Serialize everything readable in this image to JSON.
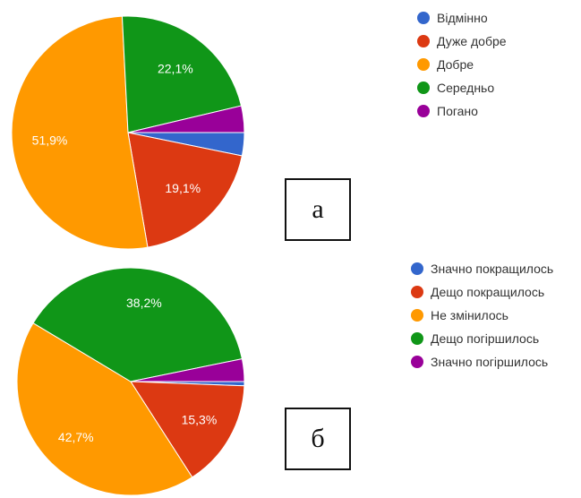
{
  "chart_data": [
    {
      "type": "pie",
      "caption": "а",
      "slices": [
        {
          "label": "Відмінно",
          "value": 3.2,
          "color": "#3366cc",
          "data_label": ""
        },
        {
          "label": "Дуже добре",
          "value": 19.1,
          "color": "#dc3912",
          "data_label": "19,1%"
        },
        {
          "label": "Добре",
          "value": 51.9,
          "color": "#ff9900",
          "data_label": "51,9%"
        },
        {
          "label": "Середньо",
          "value": 22.1,
          "color": "#109618",
          "data_label": "22,1%"
        },
        {
          "label": "Погано",
          "value": 3.7,
          "color": "#990099",
          "data_label": ""
        }
      ],
      "legend_position": "right"
    },
    {
      "type": "pie",
      "caption": "б",
      "slices": [
        {
          "label": "Значно покращилось",
          "value": 0.6,
          "color": "#3366cc",
          "data_label": ""
        },
        {
          "label": "Дещо покращилось",
          "value": 15.3,
          "color": "#dc3912",
          "data_label": "15,3%"
        },
        {
          "label": "Не змінилось",
          "value": 42.7,
          "color": "#ff9900",
          "data_label": "42,7%"
        },
        {
          "label": "Дещо погіршилось",
          "value": 38.2,
          "color": "#109618",
          "data_label": "38,2%"
        },
        {
          "label": "Значно погіршилось",
          "value": 3.2,
          "color": "#990099",
          "data_label": ""
        }
      ],
      "legend_position": "right"
    }
  ]
}
